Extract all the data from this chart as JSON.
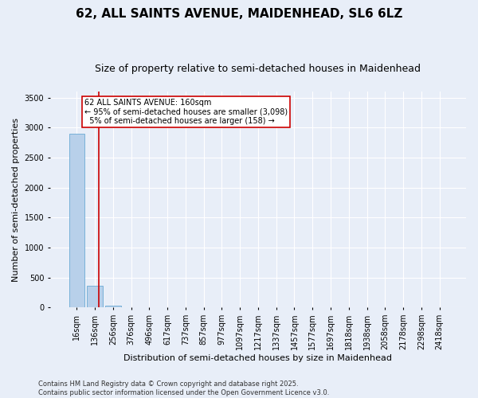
{
  "title": "62, ALL SAINTS AVENUE, MAIDENHEAD, SL6 6LZ",
  "subtitle": "Size of property relative to semi-detached houses in Maidenhead",
  "xlabel": "Distribution of semi-detached houses by size in Maidenhead",
  "ylabel": "Number of semi-detached properties",
  "categories": [
    "16sqm",
    "136sqm",
    "256sqm",
    "376sqm",
    "496sqm",
    "617sqm",
    "737sqm",
    "857sqm",
    "977sqm",
    "1097sqm",
    "1217sqm",
    "1337sqm",
    "1457sqm",
    "1577sqm",
    "1697sqm",
    "1818sqm",
    "1938sqm",
    "2058sqm",
    "2178sqm",
    "2298sqm",
    "2418sqm"
  ],
  "bar_heights": [
    2900,
    358,
    25,
    4,
    2,
    1,
    0,
    0,
    0,
    0,
    0,
    0,
    0,
    0,
    0,
    0,
    0,
    0,
    0,
    0,
    0
  ],
  "bar_color": "#b8d0ea",
  "bar_edge_color": "#6aaad4",
  "ylim": [
    0,
    3600
  ],
  "yticks": [
    0,
    500,
    1000,
    1500,
    2000,
    2500,
    3000,
    3500
  ],
  "vline_x": 1.2,
  "vline_color": "#cc0000",
  "annotation_text": "62 ALL SAINTS AVENUE: 160sqm\n← 95% of semi-detached houses are smaller (3,098)\n  5% of semi-detached houses are larger (158) →",
  "footer": "Contains HM Land Registry data © Crown copyright and database right 2025.\nContains public sector information licensed under the Open Government Licence v3.0.",
  "bg_color": "#e8eef8",
  "plot_bg_color": "#e8eef8",
  "grid_color": "#ffffff",
  "title_fontsize": 11,
  "subtitle_fontsize": 9,
  "tick_fontsize": 7,
  "label_fontsize": 8,
  "footer_fontsize": 6
}
